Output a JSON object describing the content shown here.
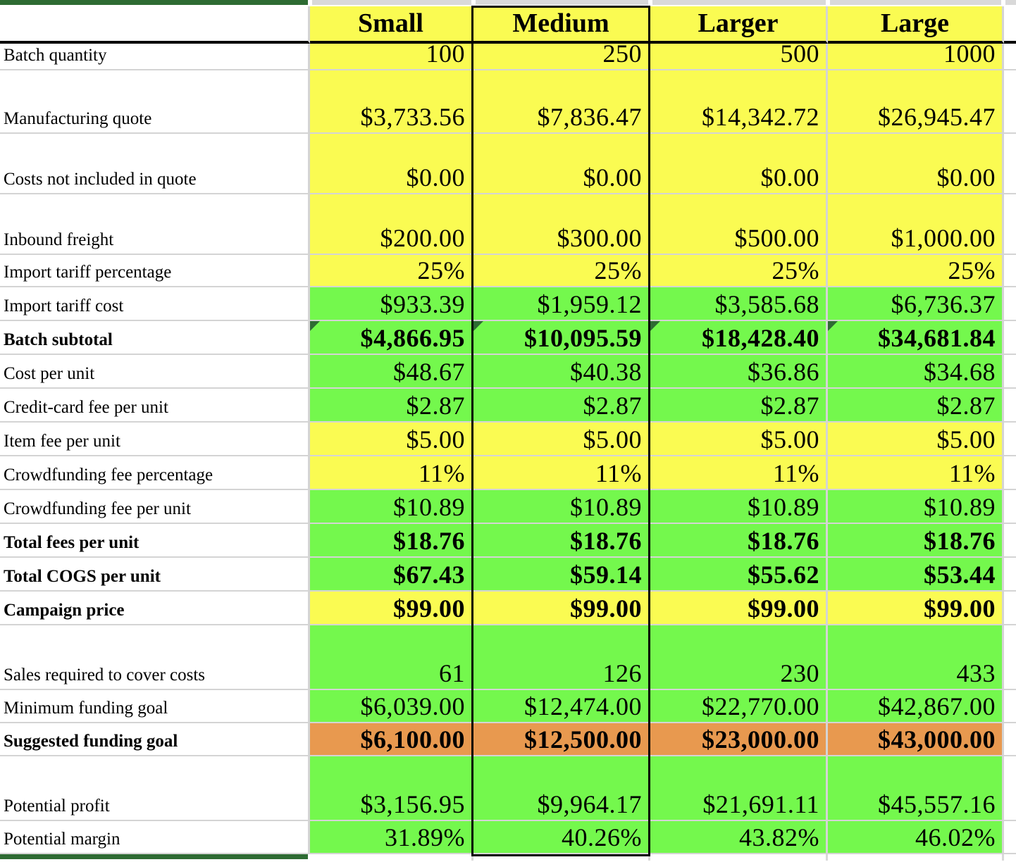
{
  "colors": {
    "yellow": "#fafb52",
    "green": "#74f84d",
    "orange": "#e8994f",
    "dark_green": "#2e6b33",
    "gridline": "#d4d4d4",
    "strip_gray": "#d9d9d9",
    "selection_border": "#000000"
  },
  "selection": {
    "selected_column": "Medium"
  },
  "header": {
    "row_label": "",
    "columns": [
      "Small",
      "Medium",
      "Larger",
      "Large"
    ]
  },
  "table": {
    "rows": [
      {
        "label": "Batch quantity",
        "values": [
          "100",
          "250",
          "500",
          "1000"
        ],
        "fill": "yellow",
        "bold": false,
        "corner_flag": false
      },
      {
        "label": "Manufacturing quote",
        "values": [
          "$3,733.56",
          "$7,836.47",
          "$14,342.72",
          "$26,945.47"
        ],
        "fill": "yellow",
        "bold": false,
        "corner_flag": false
      },
      {
        "label": "Costs not included in quote",
        "values": [
          "$0.00",
          "$0.00",
          "$0.00",
          "$0.00"
        ],
        "fill": "yellow",
        "bold": false,
        "corner_flag": false
      },
      {
        "label": "Inbound freight",
        "values": [
          "$200.00",
          "$300.00",
          "$500.00",
          "$1,000.00"
        ],
        "fill": "yellow",
        "bold": false,
        "corner_flag": false
      },
      {
        "label": "Import tariff percentage",
        "values": [
          "25%",
          "25%",
          "25%",
          "25%"
        ],
        "fill": "yellow",
        "bold": false,
        "corner_flag": false
      },
      {
        "label": "Import tariff cost",
        "values": [
          "$933.39",
          "$1,959.12",
          "$3,585.68",
          "$6,736.37"
        ],
        "fill": "green",
        "bold": false,
        "corner_flag": false
      },
      {
        "label": "Batch subtotal",
        "values": [
          "$4,866.95",
          "$10,095.59",
          "$18,428.40",
          "$34,681.84"
        ],
        "fill": "green",
        "bold": true,
        "corner_flag": true
      },
      {
        "label": "Cost per unit",
        "values": [
          "$48.67",
          "$40.38",
          "$36.86",
          "$34.68"
        ],
        "fill": "green",
        "bold": false,
        "corner_flag": false
      },
      {
        "label": "Credit-card fee per unit",
        "values": [
          "$2.87",
          "$2.87",
          "$2.87",
          "$2.87"
        ],
        "fill": "green",
        "bold": false,
        "corner_flag": false
      },
      {
        "label": "Item fee per unit",
        "values": [
          "$5.00",
          "$5.00",
          "$5.00",
          "$5.00"
        ],
        "fill": "yellow",
        "bold": false,
        "corner_flag": false
      },
      {
        "label": "Crowdfunding fee percentage",
        "values": [
          "11%",
          "11%",
          "11%",
          "11%"
        ],
        "fill": "yellow",
        "bold": false,
        "corner_flag": false
      },
      {
        "label": "Crowdfunding fee per unit",
        "values": [
          "$10.89",
          "$10.89",
          "$10.89",
          "$10.89"
        ],
        "fill": "green",
        "bold": false,
        "corner_flag": false
      },
      {
        "label": "Total fees per unit",
        "values": [
          "$18.76",
          "$18.76",
          "$18.76",
          "$18.76"
        ],
        "fill": "green",
        "bold": true,
        "corner_flag": false
      },
      {
        "label": "Total COGS per unit",
        "values": [
          "$67.43",
          "$59.14",
          "$55.62",
          "$53.44"
        ],
        "fill": "green",
        "bold": true,
        "corner_flag": false
      },
      {
        "label": "Campaign price",
        "values": [
          "$99.00",
          "$99.00",
          "$99.00",
          "$99.00"
        ],
        "fill": "yellow",
        "bold": true,
        "corner_flag": false
      },
      {
        "label": "Sales required to cover costs",
        "values": [
          "61",
          "126",
          "230",
          "433"
        ],
        "fill": "green",
        "bold": false,
        "corner_flag": false
      },
      {
        "label": "Minimum funding goal",
        "values": [
          "$6,039.00",
          "$12,474.00",
          "$22,770.00",
          "$42,867.00"
        ],
        "fill": "green",
        "bold": false,
        "corner_flag": false
      },
      {
        "label": "Suggested funding goal",
        "values": [
          "$6,100.00",
          "$12,500.00",
          "$23,000.00",
          "$43,000.00"
        ],
        "fill": "orange",
        "bold": true,
        "corner_flag": false
      },
      {
        "label": "Potential profit",
        "values": [
          "$3,156.95",
          "$9,964.17",
          "$21,691.11",
          "$45,557.16"
        ],
        "fill": "green",
        "bold": false,
        "corner_flag": false
      },
      {
        "label": "Potential margin",
        "values": [
          "31.89%",
          "40.26%",
          "43.82%",
          "46.02%"
        ],
        "fill": "green",
        "bold": false,
        "corner_flag": false
      }
    ]
  }
}
